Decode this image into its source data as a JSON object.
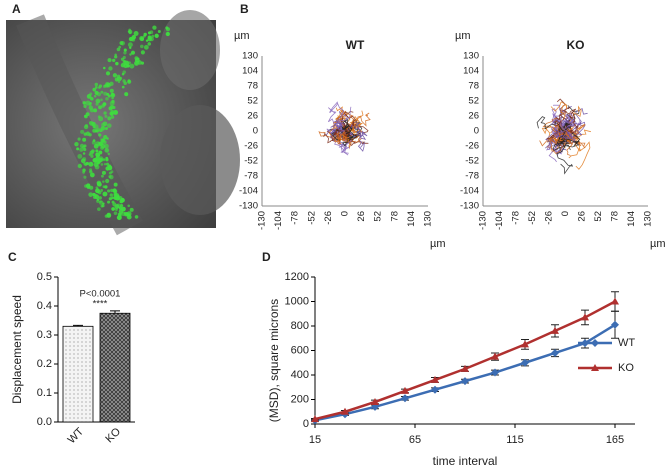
{
  "panel_labels": [
    "A",
    "B",
    "C",
    "D"
  ],
  "chart_data": [
    {
      "type": "tracks",
      "title": "WT",
      "x_unit": "µm",
      "y_unit": "µm",
      "xlim": [
        -130,
        130
      ],
      "ylim": [
        -130,
        130
      ],
      "xticks": [
        -130,
        -104,
        -78,
        -52,
        -26,
        0,
        26,
        52,
        78,
        104,
        130
      ],
      "yticks": [
        -130,
        -104,
        -78,
        -52,
        -26,
        0,
        26,
        52,
        78,
        104,
        130
      ]
    },
    {
      "type": "tracks",
      "title": "KO",
      "x_unit": "µm",
      "y_unit": "µm",
      "xlim": [
        -130,
        130
      ],
      "ylim": [
        -130,
        130
      ],
      "xticks": [
        -130,
        -104,
        -78,
        -52,
        -26,
        0,
        26,
        52,
        78,
        104,
        130
      ],
      "yticks": [
        -130,
        -104,
        -78,
        -52,
        -26,
        0,
        26,
        52,
        78,
        104,
        130
      ]
    },
    {
      "type": "bar",
      "ylabel": "Displacement speed",
      "categories": [
        "WT",
        "KO"
      ],
      "values": [
        0.33,
        0.375
      ],
      "errors": [
        0.003,
        0.008
      ],
      "ylim": [
        0,
        0.5
      ],
      "yticks": [
        {
          "value": 0,
          "label": "0.0"
        },
        0.1,
        0.2,
        0.3,
        0.4,
        0.5
      ],
      "annotations": [
        "P<0.0001",
        "****"
      ]
    },
    {
      "type": "line",
      "xlabel": "time interval",
      "ylabel": "(MSD), square microns",
      "x": [
        15,
        30,
        45,
        60,
        75,
        90,
        105,
        120,
        135,
        150,
        165
      ],
      "series": [
        {
          "name": "WT",
          "color": "#3c6db3",
          "marker": "diamond",
          "values": [
            30,
            80,
            140,
            210,
            280,
            350,
            420,
            500,
            580,
            660,
            810
          ],
          "errors": [
            5,
            10,
            15,
            15,
            15,
            15,
            20,
            25,
            30,
            40,
            110
          ]
        },
        {
          "name": "KO",
          "color": "#b0302f",
          "marker": "triangle",
          "values": [
            40,
            100,
            180,
            270,
            360,
            450,
            550,
            650,
            760,
            870,
            1000
          ],
          "errors": [
            5,
            10,
            15,
            15,
            20,
            20,
            30,
            40,
            50,
            60,
            80
          ]
        }
      ],
      "xlim": [
        15,
        175
      ],
      "ylim": [
        0,
        1200
      ],
      "xticks": [
        15,
        65,
        115,
        165
      ],
      "yticks": [
        0,
        200,
        400,
        600,
        800,
        1000,
        1200
      ],
      "legend": "right"
    }
  ]
}
